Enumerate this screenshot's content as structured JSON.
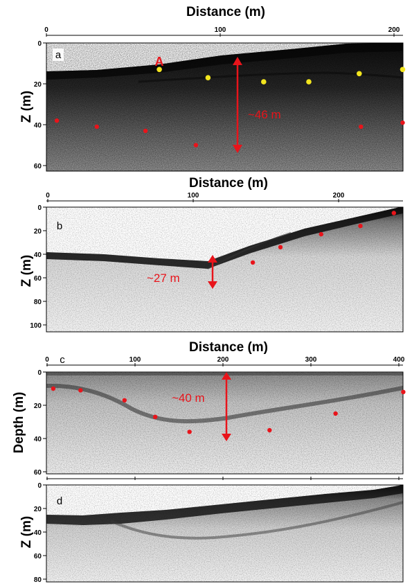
{
  "colors": {
    "red_marker": "#e8141b",
    "yellow_marker": "#f2e51e",
    "arrow": "#e8141b",
    "section_dark": "#151515"
  },
  "panels": [
    {
      "letter": "a",
      "xlabel": "Distance (m)",
      "ylabel": "Z (m)",
      "x_ticks": [
        0,
        100,
        200
      ],
      "y_ticks": [
        0,
        20,
        40,
        60
      ],
      "annotation": "~46 m",
      "marker_label": "A",
      "red_points": [
        [
          6,
          38
        ],
        [
          29,
          41
        ],
        [
          57,
          43
        ],
        [
          86,
          50
        ],
        [
          181,
          41
        ],
        [
          205,
          39
        ]
      ],
      "yellow_points": [
        [
          65,
          13
        ],
        [
          93,
          17
        ],
        [
          125,
          19
        ],
        [
          151,
          19
        ],
        [
          180,
          15
        ],
        [
          205,
          13
        ]
      ]
    },
    {
      "letter": "b",
      "xlabel": "Distance (m)",
      "ylabel": "Z (m)",
      "x_ticks": [
        0,
        100,
        200
      ],
      "y_ticks": [
        0,
        20,
        40,
        60,
        80,
        100
      ],
      "annotation": "~27 m",
      "red_points": [
        [
          141,
          47
        ],
        [
          160,
          34
        ],
        [
          188,
          23
        ],
        [
          215,
          16
        ],
        [
          238,
          5
        ]
      ]
    },
    {
      "letter": "c",
      "xlabel": "Distance (m)",
      "ylabel": "Depth (m)",
      "x_ticks": [
        0,
        100,
        200,
        300,
        400
      ],
      "y_ticks": [
        0,
        20,
        40,
        60
      ],
      "annotation": "~40 m",
      "red_points": [
        [
          7,
          10
        ],
        [
          38,
          11
        ],
        [
          88,
          17
        ],
        [
          123,
          27
        ],
        [
          162,
          36
        ],
        [
          253,
          35
        ],
        [
          328,
          25
        ],
        [
          405,
          12
        ]
      ]
    },
    {
      "letter": "d",
      "ylabel": "Z (m)",
      "y_ticks": [
        0,
        20,
        40,
        60,
        80
      ]
    }
  ]
}
